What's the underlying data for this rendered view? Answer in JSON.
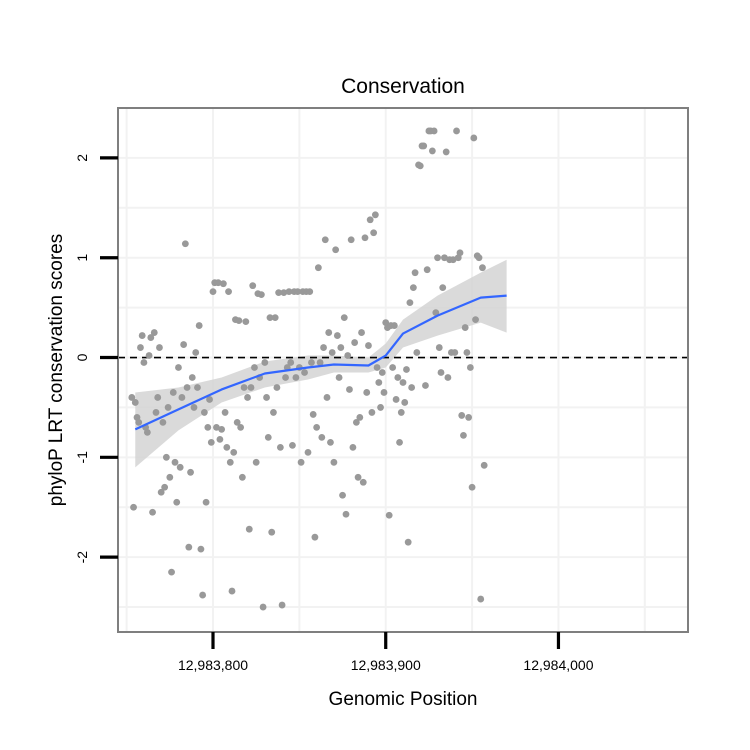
{
  "chart_data": {
    "type": "scatter",
    "title": "Conservation",
    "xlabel": "Genomic Position",
    "ylabel": "phyloP LRT conservation scores",
    "xlim": [
      12983745,
      12984075
    ],
    "ylim": [
      -2.75,
      2.5
    ],
    "x_ticks": [
      12983800,
      12983900,
      12984000
    ],
    "x_tick_labels": [
      "12,983,800",
      "12,983,900",
      "12,984,000"
    ],
    "y_ticks": [
      -2,
      -1,
      0,
      1,
      2
    ],
    "y_tick_labels": [
      "-2",
      "-1",
      "0",
      "1",
      "2"
    ],
    "reference_line": {
      "y": 0,
      "style": "dashed"
    },
    "grid": true,
    "colors": {
      "points": "#999999",
      "trend": "#3366FF",
      "band": "#d4d4d4",
      "axis": "#7f7f7f",
      "grid": "#f2f2f2"
    },
    "points": [
      [
        12983753,
        -0.4
      ],
      [
        12983754,
        -1.5
      ],
      [
        12983755,
        -0.45
      ],
      [
        12983756,
        -0.6
      ],
      [
        12983757,
        -0.65
      ],
      [
        12983758,
        0.1
      ],
      [
        12983759,
        0.22
      ],
      [
        12983760,
        -0.05
      ],
      [
        12983761,
        -0.7
      ],
      [
        12983762,
        -0.75
      ],
      [
        12983763,
        0.02
      ],
      [
        12983764,
        0.2
      ],
      [
        12983765,
        -1.55
      ],
      [
        12983766,
        0.25
      ],
      [
        12983767,
        -0.55
      ],
      [
        12983768,
        -0.4
      ],
      [
        12983769,
        0.1
      ],
      [
        12983770,
        -1.35
      ],
      [
        12983771,
        -0.65
      ],
      [
        12983772,
        -1.3
      ],
      [
        12983773,
        -1.0
      ],
      [
        12983774,
        -0.5
      ],
      [
        12983775,
        -1.2
      ],
      [
        12983776,
        -2.15
      ],
      [
        12983777,
        -0.35
      ],
      [
        12983778,
        -1.05
      ],
      [
        12983779,
        -1.45
      ],
      [
        12983780,
        -0.1
      ],
      [
        12983781,
        -1.1
      ],
      [
        12983782,
        -0.4
      ],
      [
        12983783,
        0.13
      ],
      [
        12983784,
        1.14
      ],
      [
        12983785,
        -0.3
      ],
      [
        12983786,
        -1.9
      ],
      [
        12983787,
        -1.15
      ],
      [
        12983788,
        -0.2
      ],
      [
        12983789,
        -0.5
      ],
      [
        12983790,
        0.05
      ],
      [
        12983791,
        -0.3
      ],
      [
        12983792,
        0.32
      ],
      [
        12983793,
        -1.92
      ],
      [
        12983794,
        -2.38
      ],
      [
        12983795,
        -0.55
      ],
      [
        12983796,
        -1.45
      ],
      [
        12983797,
        -0.7
      ],
      [
        12983798,
        -0.42
      ],
      [
        12983799,
        -0.85
      ],
      [
        12983800,
        0.66
      ],
      [
        12983801,
        0.75
      ],
      [
        12983802,
        -0.7
      ],
      [
        12983803,
        0.75
      ],
      [
        12983804,
        -0.82
      ],
      [
        12983805,
        -0.72
      ],
      [
        12983806,
        0.74
      ],
      [
        12983807,
        -0.55
      ],
      [
        12983808,
        -0.9
      ],
      [
        12983809,
        0.66
      ],
      [
        12983810,
        -1.05
      ],
      [
        12983811,
        -2.34
      ],
      [
        12983812,
        -0.95
      ],
      [
        12983813,
        0.38
      ],
      [
        12983814,
        -0.65
      ],
      [
        12983815,
        0.37
      ],
      [
        12983816,
        -0.7
      ],
      [
        12983817,
        -1.2
      ],
      [
        12983818,
        -0.3
      ],
      [
        12983819,
        0.36
      ],
      [
        12983820,
        -0.4
      ],
      [
        12983821,
        -1.72
      ],
      [
        12983822,
        -0.3
      ],
      [
        12983823,
        0.72
      ],
      [
        12983824,
        -0.1
      ],
      [
        12983825,
        -1.05
      ],
      [
        12983826,
        0.64
      ],
      [
        12983827,
        -0.2
      ],
      [
        12983828,
        0.63
      ],
      [
        12983829,
        -2.5
      ],
      [
        12983830,
        -0.05
      ],
      [
        12983831,
        -0.4
      ],
      [
        12983832,
        -0.8
      ],
      [
        12983833,
        0.4
      ],
      [
        12983834,
        -1.75
      ],
      [
        12983835,
        -0.55
      ],
      [
        12983836,
        0.4
      ],
      [
        12983837,
        -0.3
      ],
      [
        12983838,
        0.65
      ],
      [
        12983839,
        -0.9
      ],
      [
        12983840,
        -2.48
      ],
      [
        12983841,
        0.65
      ],
      [
        12983842,
        -0.2
      ],
      [
        12983843,
        -0.1
      ],
      [
        12983844,
        0.66
      ],
      [
        12983845,
        -0.05
      ],
      [
        12983846,
        -0.88
      ],
      [
        12983847,
        0.66
      ],
      [
        12983848,
        -0.2
      ],
      [
        12983849,
        0.66
      ],
      [
        12983850,
        -0.1
      ],
      [
        12983851,
        -1.05
      ],
      [
        12983852,
        0.66
      ],
      [
        12983853,
        -0.15
      ],
      [
        12983854,
        0.66
      ],
      [
        12983855,
        -0.95
      ],
      [
        12983856,
        0.66
      ],
      [
        12983857,
        -0.05
      ],
      [
        12983858,
        -0.57
      ],
      [
        12983859,
        -1.8
      ],
      [
        12983860,
        -0.7
      ],
      [
        12983861,
        0.9
      ],
      [
        12983862,
        -0.05
      ],
      [
        12983863,
        -0.8
      ],
      [
        12983864,
        0.1
      ],
      [
        12983865,
        1.18
      ],
      [
        12983866,
        -0.4
      ],
      [
        12983867,
        0.25
      ],
      [
        12983868,
        -0.85
      ],
      [
        12983869,
        0.05
      ],
      [
        12983870,
        -1.05
      ],
      [
        12983871,
        1.08
      ],
      [
        12983872,
        0.22
      ],
      [
        12983873,
        -0.2
      ],
      [
        12983874,
        0.1
      ],
      [
        12983875,
        -1.38
      ],
      [
        12983876,
        0.4
      ],
      [
        12983877,
        -1.57
      ],
      [
        12983878,
        0.02
      ],
      [
        12983879,
        -0.32
      ],
      [
        12983880,
        1.18
      ],
      [
        12983881,
        -0.9
      ],
      [
        12983882,
        0.15
      ],
      [
        12983883,
        -0.65
      ],
      [
        12983884,
        -1.2
      ],
      [
        12983885,
        -0.6
      ],
      [
        12983886,
        0.25
      ],
      [
        12983887,
        -1.25
      ],
      [
        12983888,
        1.2
      ],
      [
        12983889,
        -0.35
      ],
      [
        12983890,
        0.12
      ],
      [
        12983891,
        1.38
      ],
      [
        12983892,
        -0.55
      ],
      [
        12983893,
        1.25
      ],
      [
        12983894,
        1.43
      ],
      [
        12983895,
        -0.1
      ],
      [
        12983896,
        -0.25
      ],
      [
        12983897,
        -0.5
      ],
      [
        12983898,
        -0.15
      ],
      [
        12983899,
        -0.35
      ],
      [
        12983900,
        0.35
      ],
      [
        12983901,
        0.3
      ],
      [
        12983902,
        -1.58
      ],
      [
        12983903,
        0.32
      ],
      [
        12983904,
        -0.1
      ],
      [
        12983905,
        0.32
      ],
      [
        12983906,
        -0.42
      ],
      [
        12983907,
        -0.2
      ],
      [
        12983908,
        -0.85
      ],
      [
        12983909,
        -0.55
      ],
      [
        12983910,
        -0.25
      ],
      [
        12983911,
        -0.45
      ],
      [
        12983912,
        -0.12
      ],
      [
        12983913,
        -1.85
      ],
      [
        12983914,
        0.55
      ],
      [
        12983915,
        -0.3
      ],
      [
        12983916,
        0.7
      ],
      [
        12983917,
        0.85
      ],
      [
        12983918,
        0.05
      ],
      [
        12983919,
        1.93
      ],
      [
        12983920,
        1.92
      ],
      [
        12983921,
        2.12
      ],
      [
        12983922,
        2.12
      ],
      [
        12983923,
        -0.28
      ],
      [
        12983924,
        0.88
      ],
      [
        12983925,
        2.27
      ],
      [
        12983926,
        2.27
      ],
      [
        12983927,
        2.07
      ],
      [
        12983928,
        2.27
      ],
      [
        12983929,
        0.45
      ],
      [
        12983930,
        1.0
      ],
      [
        12983931,
        0.1
      ],
      [
        12983932,
        -0.15
      ],
      [
        12983933,
        0.7
      ],
      [
        12983934,
        1.0
      ],
      [
        12983935,
        2.06
      ],
      [
        12983936,
        -0.2
      ],
      [
        12983937,
        0.98
      ],
      [
        12983938,
        0.05
      ],
      [
        12983939,
        0.98
      ],
      [
        12983940,
        0.05
      ],
      [
        12983941,
        2.27
      ],
      [
        12983942,
        1.0
      ],
      [
        12983943,
        1.05
      ],
      [
        12983944,
        -0.58
      ],
      [
        12983945,
        -0.78
      ],
      [
        12983946,
        0.3
      ],
      [
        12983947,
        0.05
      ],
      [
        12983948,
        -0.6
      ],
      [
        12983949,
        -0.1
      ],
      [
        12983950,
        -1.3
      ],
      [
        12983951,
        2.2
      ],
      [
        12983952,
        0.38
      ],
      [
        12983953,
        1.02
      ],
      [
        12983954,
        1.0
      ],
      [
        12983955,
        -2.42
      ],
      [
        12983956,
        0.9
      ],
      [
        12983957,
        -1.08
      ]
    ],
    "trend": {
      "x": [
        12983755,
        12983780,
        12983805,
        12983830,
        12983855,
        12983870,
        12983890,
        12983900,
        12983910,
        12983930,
        12983955,
        12983970
      ],
      "y": [
        -0.72,
        -0.52,
        -0.32,
        -0.16,
        -0.1,
        -0.07,
        -0.08,
        0.02,
        0.24,
        0.42,
        0.6,
        0.62
      ],
      "lower": [
        -1.1,
        -0.73,
        -0.45,
        -0.3,
        -0.22,
        -0.15,
        -0.15,
        -0.1,
        0.1,
        0.22,
        0.35,
        0.25
      ],
      "upper": [
        -0.35,
        -0.3,
        -0.2,
        -0.04,
        0.02,
        0.02,
        0.0,
        0.14,
        0.38,
        0.62,
        0.85,
        0.98
      ]
    }
  }
}
